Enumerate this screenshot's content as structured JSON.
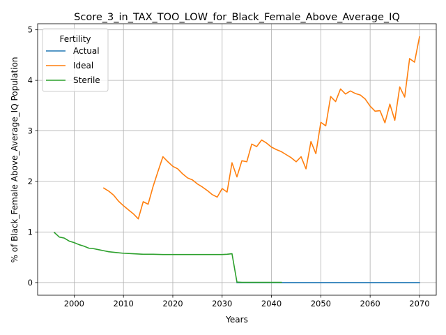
{
  "chart_data": {
    "type": "line",
    "title": "Score_3_in_TAX_TOO_LOW_for_Black_Female_Above_Average_IQ",
    "xlabel": "Years",
    "ylabel": "% of Black_Female Above_Average_IQ Population",
    "xlim": [
      1992.6,
      2073.4
    ],
    "ylim": [
      -0.25,
      5.12
    ],
    "xticks": [
      2000,
      2010,
      2020,
      2030,
      2040,
      2050,
      2060,
      2070
    ],
    "yticks": [
      0,
      1,
      2,
      3,
      4,
      5
    ],
    "grid": true,
    "legend": {
      "title": "Fertility",
      "placement": "top-left"
    },
    "series": [
      {
        "name": "Actual",
        "color": "#1f77b4",
        "x": [
          2033,
          2040,
          2050,
          2060,
          2070
        ],
        "y": [
          0,
          0,
          0,
          0,
          0
        ]
      },
      {
        "name": "Ideal",
        "color": "#ff7f0e",
        "x": [
          2006,
          2007,
          2008,
          2009,
          2010,
          2011,
          2012,
          2013,
          2014,
          2015,
          2016,
          2017,
          2018,
          2019,
          2020,
          2021,
          2022,
          2023,
          2024,
          2025,
          2026,
          2027,
          2028,
          2029,
          2030,
          2031,
          2032,
          2033,
          2034,
          2035,
          2036,
          2037,
          2038,
          2039,
          2040,
          2041,
          2042,
          2043,
          2044,
          2045,
          2046,
          2047,
          2048,
          2049,
          2050,
          2051,
          2052,
          2053,
          2054,
          2055,
          2056,
          2057,
          2058,
          2059,
          2060,
          2061,
          2062,
          2063,
          2064,
          2065,
          2066,
          2067,
          2068,
          2069,
          2070
        ],
        "y": [
          1.87,
          1.81,
          1.73,
          1.61,
          1.52,
          1.44,
          1.36,
          1.26,
          1.6,
          1.55,
          1.9,
          2.2,
          2.49,
          2.39,
          2.3,
          2.25,
          2.15,
          2.07,
          2.03,
          1.95,
          1.89,
          1.82,
          1.74,
          1.69,
          1.86,
          1.79,
          2.37,
          2.09,
          2.41,
          2.39,
          2.74,
          2.69,
          2.82,
          2.76,
          2.68,
          2.63,
          2.59,
          2.53,
          2.47,
          2.39,
          2.49,
          2.25,
          2.79,
          2.55,
          3.17,
          3.1,
          3.68,
          3.58,
          3.83,
          3.73,
          3.79,
          3.74,
          3.71,
          3.63,
          3.49,
          3.39,
          3.4,
          3.16,
          3.53,
          3.21,
          3.87,
          3.67,
          4.43,
          4.36,
          4.86
        ]
      },
      {
        "name": "Sterile",
        "color": "#2ca02c",
        "x": [
          1996,
          1997,
          1998,
          1999,
          2000,
          2001,
          2002,
          2003,
          2004,
          2005,
          2006,
          2007,
          2008,
          2009,
          2010,
          2012,
          2014,
          2016,
          2018,
          2020,
          2022,
          2024,
          2026,
          2028,
          2030,
          2031,
          2032,
          2033,
          2034,
          2036,
          2038,
          2040,
          2042
        ],
        "y": [
          0.99,
          0.9,
          0.88,
          0.82,
          0.79,
          0.75,
          0.72,
          0.68,
          0.67,
          0.65,
          0.63,
          0.61,
          0.6,
          0.59,
          0.58,
          0.57,
          0.56,
          0.56,
          0.555,
          0.555,
          0.555,
          0.555,
          0.555,
          0.555,
          0.555,
          0.56,
          0.57,
          0.01,
          0.005,
          0.005,
          0.005,
          0.005,
          0.005
        ]
      }
    ]
  }
}
